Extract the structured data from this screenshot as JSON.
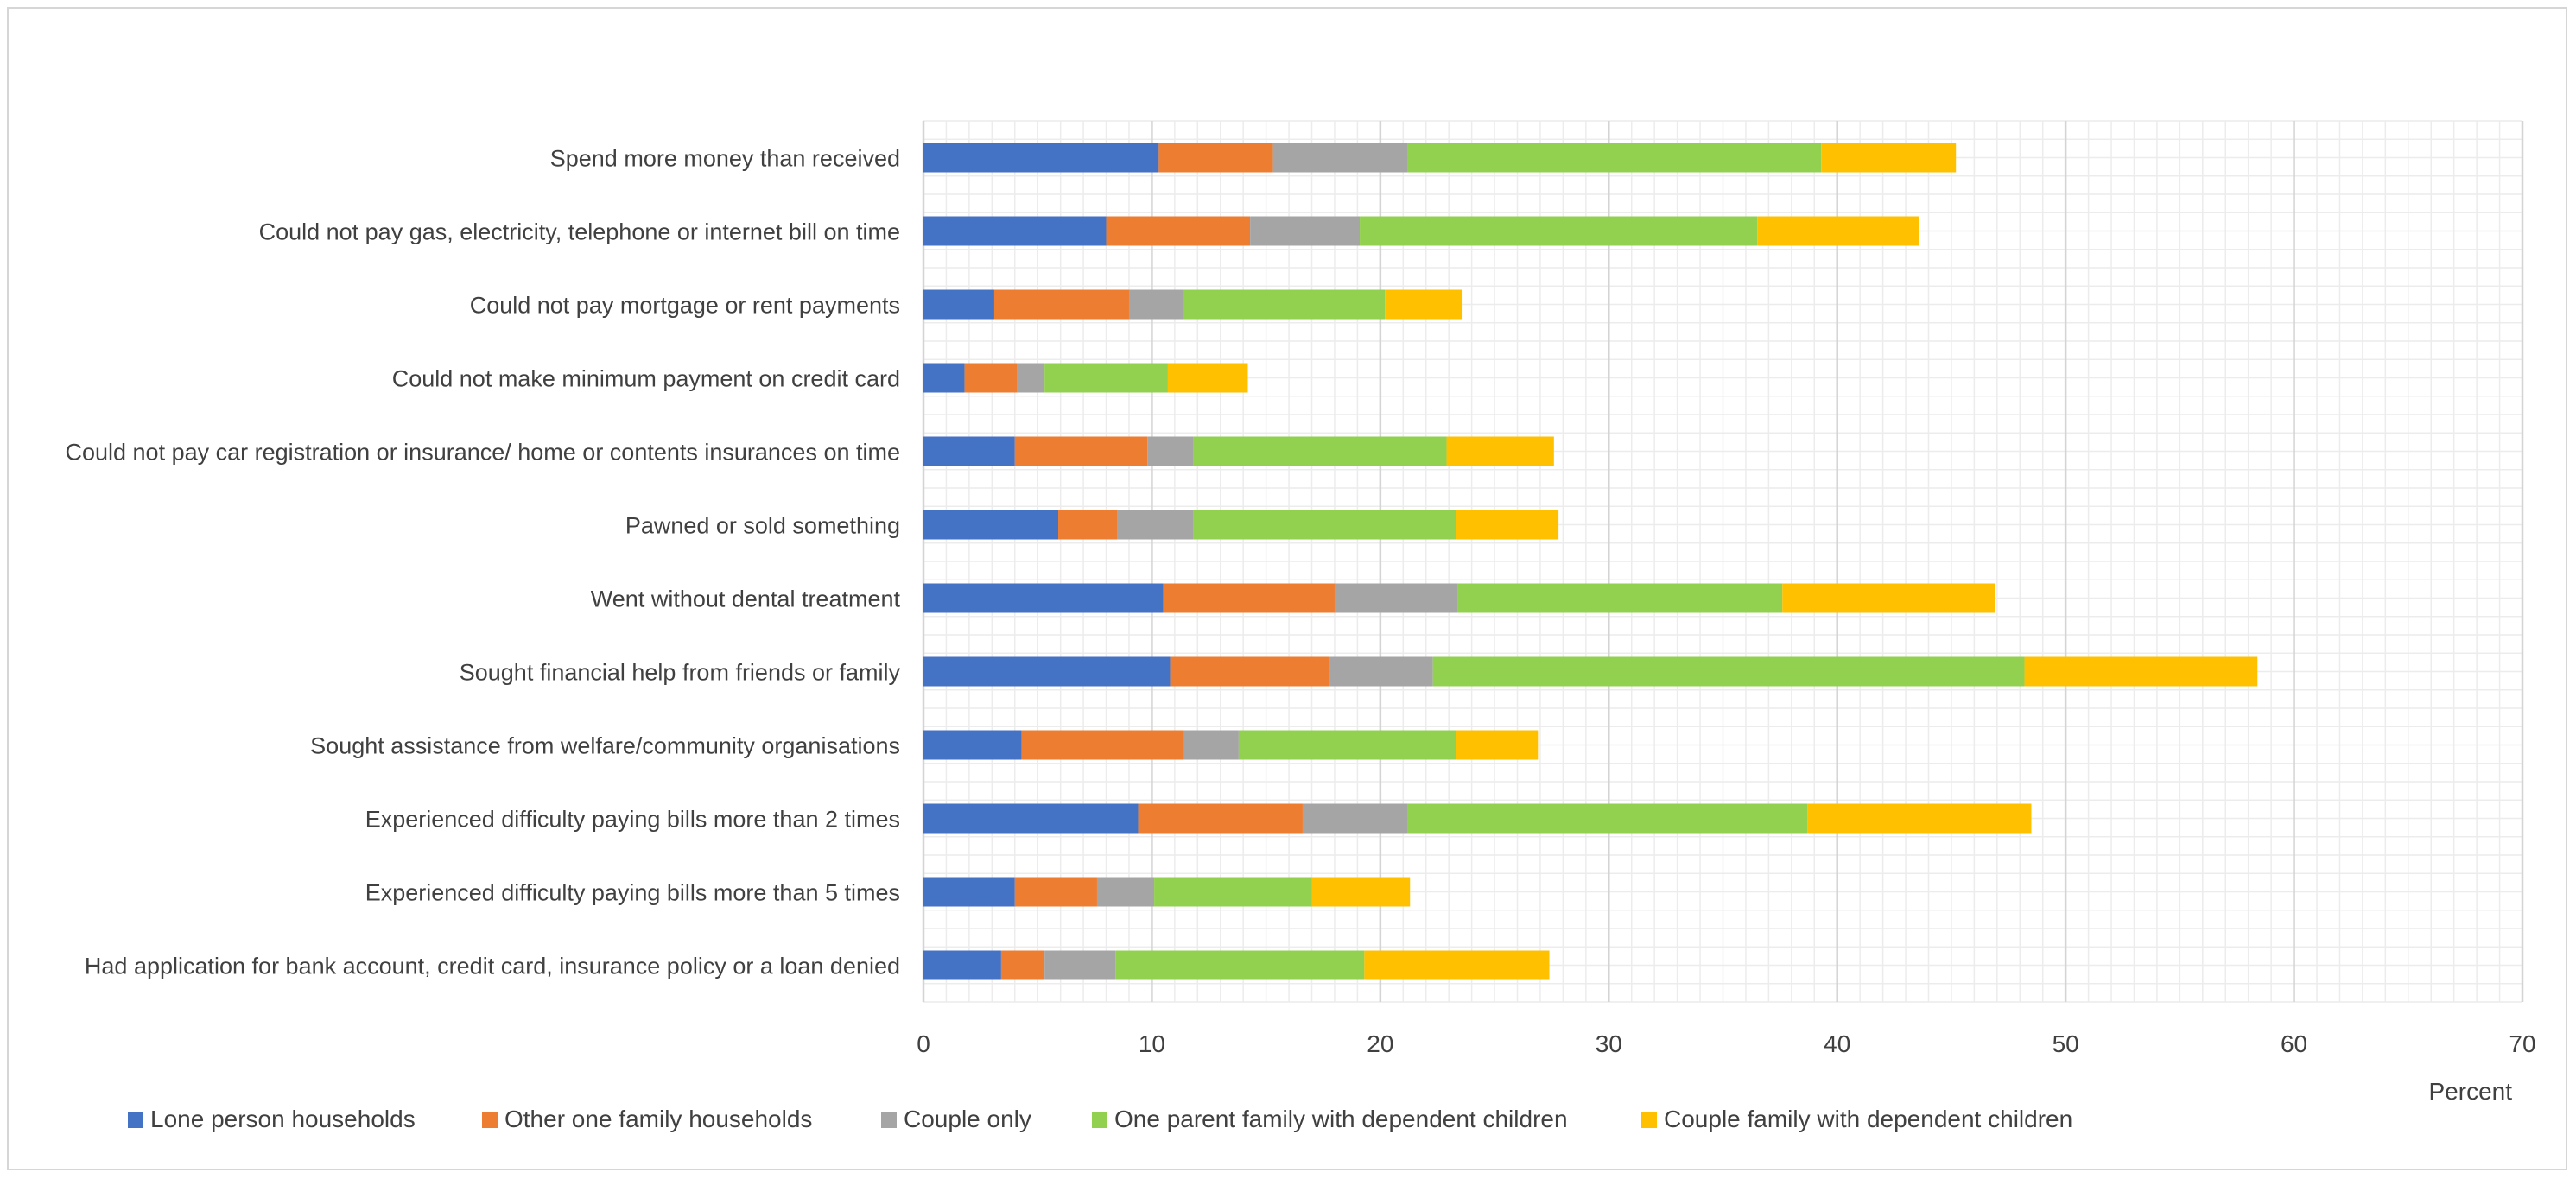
{
  "chart_data": {
    "type": "bar",
    "orientation": "horizontal",
    "stacked": true,
    "title": "",
    "xlabel": "Percent",
    "ylabel": "",
    "xlim": [
      0,
      70
    ],
    "xticks": [
      0,
      10,
      20,
      30,
      40,
      50,
      60,
      70
    ],
    "grid": true,
    "legend_position": "bottom",
    "categories": [
      "Spend more money than received",
      "Could not pay gas, electricity, telephone or internet bill on time",
      "Could not pay mortgage or rent payments",
      "Could not make minimum payment on credit card",
      "Could not pay car registration or insurance/ home or contents insurances on time",
      "Pawned or sold something",
      "Went without dental treatment",
      "Sought financial help from friends or family",
      "Sought assistance from welfare/community organisations",
      "Experienced difficulty paying bills more than 2 times",
      "Experienced difficulty paying bills more than 5 times",
      "Had application for bank account, credit card, insurance policy or a loan denied"
    ],
    "series": [
      {
        "name": "Lone person households",
        "color": "#4472C4",
        "values": [
          10.3,
          8.0,
          3.1,
          1.8,
          4.0,
          5.9,
          10.5,
          10.8,
          4.3,
          9.4,
          4.0,
          3.4
        ]
      },
      {
        "name": "Other one family households",
        "color": "#ED7D31",
        "values": [
          5.0,
          6.3,
          5.9,
          2.3,
          5.8,
          2.6,
          7.5,
          7.0,
          7.1,
          7.2,
          3.6,
          1.9
        ]
      },
      {
        "name": "Couple only",
        "color": "#A5A5A5",
        "values": [
          5.9,
          4.8,
          2.4,
          1.2,
          2.0,
          3.3,
          5.4,
          4.5,
          2.4,
          4.6,
          2.5,
          3.1
        ]
      },
      {
        "name": "One parent family with dependent children",
        "color": "#92D050",
        "values": [
          18.1,
          17.4,
          8.8,
          5.4,
          11.1,
          11.5,
          14.2,
          25.9,
          9.5,
          17.5,
          6.9,
          10.9
        ]
      },
      {
        "name": "Couple family with dependent children",
        "color": "#FFC000",
        "values": [
          5.9,
          7.1,
          3.4,
          3.5,
          4.7,
          4.5,
          9.3,
          10.2,
          3.6,
          9.8,
          4.3,
          8.1
        ]
      }
    ]
  }
}
